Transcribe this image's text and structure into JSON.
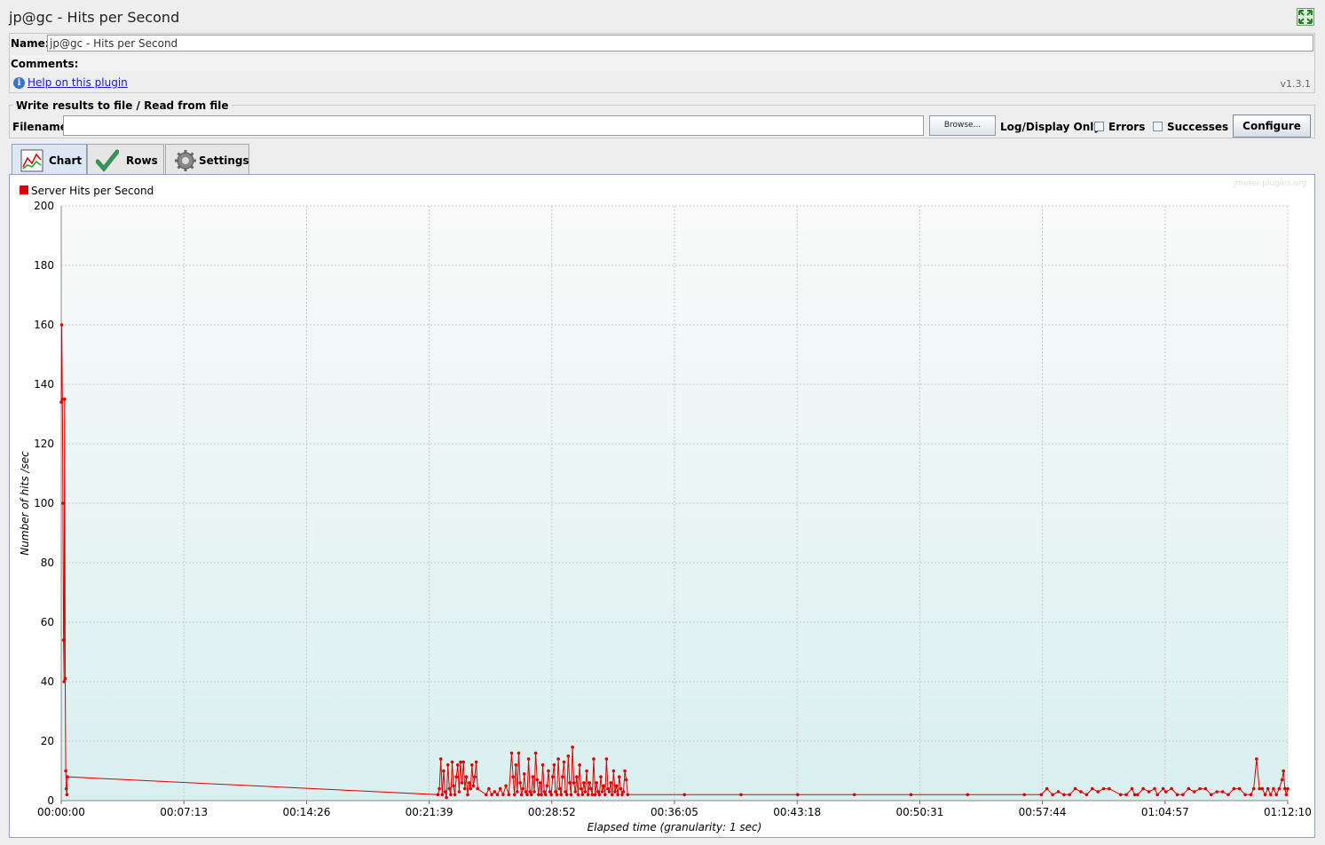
{
  "header": {
    "title": "jp@gc - Hits per Second"
  },
  "name_panel": {
    "name_label": "Name:",
    "name_value": "jp@gc - Hits per Second",
    "comments_label": "Comments:",
    "help_link": "Help on this plugin",
    "version": "v1.3.1"
  },
  "file_panel": {
    "legend": "Write results to file / Read from file",
    "filename_label": "Filename",
    "filename_value": "",
    "browse_label": "Browse...",
    "log_display_label": "Log/Display Only:",
    "errors_label": "Errors",
    "errors_checked": false,
    "successes_label": "Successes",
    "successes_checked": false,
    "configure_label": "Configure"
  },
  "tabs": [
    {
      "label": "Chart",
      "icon": "chart-icon",
      "active": true
    },
    {
      "label": "Rows",
      "icon": "checkmark-icon",
      "active": false
    },
    {
      "label": "Settings",
      "icon": "gear-icon",
      "active": false
    }
  ],
  "chart": {
    "watermark": "jmeter-plugins.org",
    "legend_label": "Server Hits per Second",
    "ylabel": "Number of hits /sec",
    "xlabel": "Elapsed time (granularity: 1 sec)"
  },
  "chart_data": {
    "type": "line",
    "legend_position": "top-left",
    "grid": true,
    "ylim": [
      0,
      200
    ],
    "yticks": [
      0,
      20,
      40,
      60,
      80,
      100,
      120,
      140,
      160,
      180,
      200
    ],
    "xticks": [
      "00:00:00",
      "00:07:13",
      "00:14:26",
      "00:21:39",
      "00:28:52",
      "00:36:05",
      "00:43:18",
      "00:50:31",
      "00:57:44",
      "01:04:57",
      "01:12:10"
    ],
    "xlim_seconds": [
      0,
      4330
    ],
    "series": [
      {
        "name": "Server Hits per Second",
        "color": "#e00000",
        "points": [
          [
            0,
            134
          ],
          [
            2,
            160
          ],
          [
            4,
            135
          ],
          [
            6,
            100
          ],
          [
            8,
            54
          ],
          [
            10,
            40
          ],
          [
            12,
            135
          ],
          [
            14,
            41
          ],
          [
            16,
            10
          ],
          [
            18,
            4
          ],
          [
            20,
            2
          ],
          [
            22,
            8
          ],
          [
            1330,
            2
          ],
          [
            1335,
            4
          ],
          [
            1340,
            14
          ],
          [
            1345,
            2
          ],
          [
            1350,
            10
          ],
          [
            1355,
            3
          ],
          [
            1360,
            1
          ],
          [
            1365,
            12
          ],
          [
            1370,
            4
          ],
          [
            1375,
            2
          ],
          [
            1380,
            13
          ],
          [
            1385,
            5
          ],
          [
            1390,
            2
          ],
          [
            1395,
            8
          ],
          [
            1400,
            12
          ],
          [
            1405,
            3
          ],
          [
            1410,
            13
          ],
          [
            1415,
            6
          ],
          [
            1420,
            13
          ],
          [
            1425,
            4
          ],
          [
            1430,
            8
          ],
          [
            1435,
            2
          ],
          [
            1440,
            6
          ],
          [
            1445,
            4
          ],
          [
            1450,
            12
          ],
          [
            1455,
            5
          ],
          [
            1460,
            8
          ],
          [
            1465,
            13
          ],
          [
            1470,
            4
          ],
          [
            1500,
            2
          ],
          [
            1510,
            4
          ],
          [
            1520,
            2
          ],
          [
            1530,
            3
          ],
          [
            1540,
            2
          ],
          [
            1550,
            4
          ],
          [
            1560,
            2
          ],
          [
            1570,
            5
          ],
          [
            1580,
            2
          ],
          [
            1590,
            16
          ],
          [
            1595,
            8
          ],
          [
            1600,
            2
          ],
          [
            1605,
            12
          ],
          [
            1610,
            3
          ],
          [
            1615,
            16
          ],
          [
            1620,
            6
          ],
          [
            1625,
            2
          ],
          [
            1630,
            4
          ],
          [
            1635,
            9
          ],
          [
            1640,
            3
          ],
          [
            1645,
            2
          ],
          [
            1650,
            14
          ],
          [
            1655,
            3
          ],
          [
            1660,
            2
          ],
          [
            1665,
            8
          ],
          [
            1670,
            3
          ],
          [
            1675,
            16
          ],
          [
            1680,
            7
          ],
          [
            1685,
            2
          ],
          [
            1690,
            6
          ],
          [
            1695,
            2
          ],
          [
            1700,
            12
          ],
          [
            1705,
            3
          ],
          [
            1710,
            2
          ],
          [
            1715,
            5
          ],
          [
            1720,
            10
          ],
          [
            1725,
            3
          ],
          [
            1730,
            2
          ],
          [
            1735,
            8
          ],
          [
            1740,
            12
          ],
          [
            1745,
            3
          ],
          [
            1750,
            2
          ],
          [
            1755,
            14
          ],
          [
            1760,
            4
          ],
          [
            1765,
            2
          ],
          [
            1770,
            8
          ],
          [
            1775,
            13
          ],
          [
            1780,
            3
          ],
          [
            1785,
            2
          ],
          [
            1790,
            15
          ],
          [
            1795,
            6
          ],
          [
            1800,
            2
          ],
          [
            1805,
            18
          ],
          [
            1810,
            6
          ],
          [
            1815,
            3
          ],
          [
            1820,
            8
          ],
          [
            1825,
            2
          ],
          [
            1830,
            12
          ],
          [
            1835,
            4
          ],
          [
            1840,
            2
          ],
          [
            1845,
            6
          ],
          [
            1850,
            3
          ],
          [
            1855,
            10
          ],
          [
            1860,
            2
          ],
          [
            1865,
            6
          ],
          [
            1870,
            4
          ],
          [
            1875,
            2
          ],
          [
            1880,
            14
          ],
          [
            1885,
            2
          ],
          [
            1890,
            6
          ],
          [
            1895,
            3
          ],
          [
            1900,
            2
          ],
          [
            1905,
            8
          ],
          [
            1910,
            3
          ],
          [
            1915,
            5
          ],
          [
            1920,
            2
          ],
          [
            1925,
            14
          ],
          [
            1930,
            4
          ],
          [
            1935,
            3
          ],
          [
            1940,
            6
          ],
          [
            1945,
            2
          ],
          [
            1950,
            10
          ],
          [
            1955,
            3
          ],
          [
            1960,
            5
          ],
          [
            1965,
            2
          ],
          [
            1970,
            8
          ],
          [
            1975,
            4
          ],
          [
            1980,
            2
          ],
          [
            1985,
            3
          ],
          [
            1990,
            10
          ],
          [
            1995,
            7
          ],
          [
            2000,
            2
          ],
          [
            2200,
            2
          ],
          [
            2400,
            2
          ],
          [
            2600,
            2
          ],
          [
            2800,
            2
          ],
          [
            3000,
            2
          ],
          [
            3200,
            2
          ],
          [
            3400,
            2
          ],
          [
            3460,
            2
          ],
          [
            3480,
            4
          ],
          [
            3500,
            2
          ],
          [
            3520,
            3
          ],
          [
            3540,
            2
          ],
          [
            3560,
            2
          ],
          [
            3580,
            4
          ],
          [
            3600,
            3
          ],
          [
            3620,
            2
          ],
          [
            3640,
            4
          ],
          [
            3660,
            3
          ],
          [
            3680,
            4
          ],
          [
            3700,
            4
          ],
          [
            3740,
            2
          ],
          [
            3760,
            2
          ],
          [
            3780,
            4
          ],
          [
            3790,
            2
          ],
          [
            3800,
            2
          ],
          [
            3820,
            4
          ],
          [
            3840,
            3
          ],
          [
            3860,
            4
          ],
          [
            3870,
            2
          ],
          [
            3890,
            4
          ],
          [
            3900,
            3
          ],
          [
            3920,
            4
          ],
          [
            3940,
            2
          ],
          [
            3960,
            2
          ],
          [
            3980,
            4
          ],
          [
            4000,
            3
          ],
          [
            4020,
            4
          ],
          [
            4040,
            4
          ],
          [
            4060,
            2
          ],
          [
            4080,
            3
          ],
          [
            4100,
            3
          ],
          [
            4120,
            2
          ],
          [
            4140,
            4
          ],
          [
            4160,
            4
          ],
          [
            4180,
            2
          ],
          [
            4200,
            2
          ],
          [
            4210,
            4
          ],
          [
            4220,
            14
          ],
          [
            4230,
            4
          ],
          [
            4240,
            4
          ],
          [
            4250,
            2
          ],
          [
            4260,
            4
          ],
          [
            4270,
            2
          ],
          [
            4280,
            4
          ],
          [
            4290,
            2
          ],
          [
            4300,
            4
          ],
          [
            4310,
            7
          ],
          [
            4315,
            10
          ],
          [
            4320,
            4
          ],
          [
            4325,
            2
          ],
          [
            4330,
            4
          ]
        ]
      }
    ]
  }
}
